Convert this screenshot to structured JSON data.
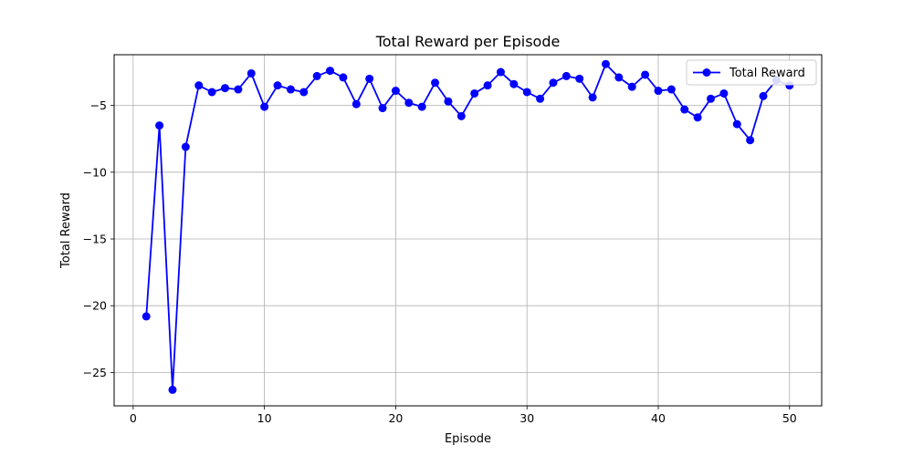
{
  "chart_data": {
    "type": "line",
    "title": "Total Reward per Episode",
    "xlabel": "Episode",
    "ylabel": "Total Reward",
    "xlim": [
      -1.45,
      52.45
    ],
    "ylim": [
      -27.5,
      -1.2
    ],
    "xticks": [
      0,
      10,
      20,
      30,
      40,
      50
    ],
    "yticks": [
      -25,
      -20,
      -15,
      -10,
      -5
    ],
    "xtick_labels": [
      "0",
      "10",
      "20",
      "30",
      "40",
      "50"
    ],
    "ytick_labels": [
      "−25",
      "−20",
      "−15",
      "−10",
      "−5"
    ],
    "grid": true,
    "legend_position": "top-right",
    "series": [
      {
        "name": "Total Reward",
        "color": "#0000ff",
        "marker": "circle",
        "x": [
          1,
          2,
          3,
          4,
          5,
          6,
          7,
          8,
          9,
          10,
          11,
          12,
          13,
          14,
          15,
          16,
          17,
          18,
          19,
          20,
          21,
          22,
          23,
          24,
          25,
          26,
          27,
          28,
          29,
          30,
          31,
          32,
          33,
          34,
          35,
          36,
          37,
          38,
          39,
          40,
          41,
          42,
          43,
          44,
          45,
          46,
          47,
          48,
          49,
          50
        ],
        "y": [
          -20.8,
          -6.5,
          -26.3,
          -8.1,
          -3.5,
          -4.0,
          -3.7,
          -3.8,
          -2.6,
          -5.1,
          -3.5,
          -3.8,
          -4.0,
          -2.8,
          -2.4,
          -2.9,
          -4.9,
          -3.0,
          -5.2,
          -3.9,
          -4.8,
          -5.1,
          -3.3,
          -4.7,
          -5.8,
          -4.1,
          -3.5,
          -2.5,
          -3.4,
          -4.0,
          -4.5,
          -3.3,
          -2.8,
          -3.0,
          -4.4,
          -1.9,
          -2.9,
          -3.6,
          -2.7,
          -3.9,
          -3.8,
          -5.3,
          -5.9,
          -4.5,
          -4.1,
          -6.4,
          -7.6,
          -4.3,
          -3.1,
          -3.5
        ]
      }
    ]
  }
}
